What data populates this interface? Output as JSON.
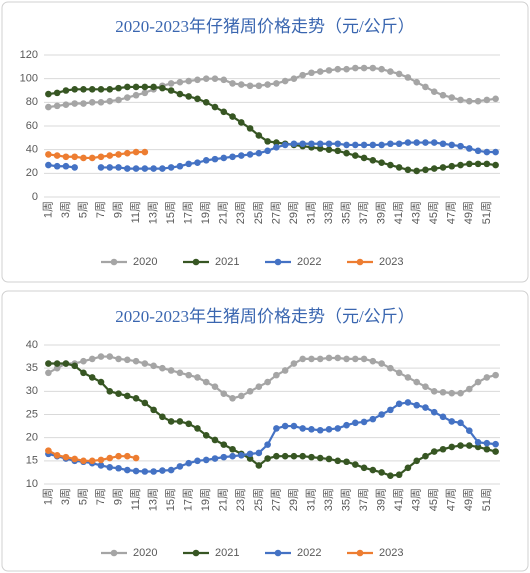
{
  "chart_data": [
    {
      "type": "line",
      "title": "2020-2023年仔猪周价格走势（元/公斤）",
      "categories": [
        "1周",
        null,
        "3周",
        null,
        "5周",
        null,
        "7周",
        null,
        "9周",
        null,
        "11周",
        null,
        "13周",
        null,
        "15周",
        null,
        "17周",
        null,
        "19周",
        null,
        "21周",
        null,
        "23周",
        null,
        "25周",
        null,
        "27周",
        null,
        "29周",
        null,
        "31周",
        null,
        "33周",
        null,
        "35周",
        null,
        "37周",
        null,
        "39周",
        null,
        "41周",
        null,
        "43周",
        null,
        "45周",
        null,
        "47周",
        null,
        "49周",
        null,
        "51周",
        null
      ],
      "ylim": [
        0,
        120
      ],
      "yticks": [
        0,
        20,
        40,
        60,
        80,
        100,
        120
      ],
      "grid": true,
      "legend": "bottom",
      "series": [
        {
          "name": "2020",
          "color": "#a5a5a5",
          "values": [
            76,
            77,
            78,
            79,
            79,
            80,
            80,
            81,
            82,
            84,
            86,
            88,
            91,
            94,
            96,
            97,
            98,
            99,
            100,
            100,
            99,
            96,
            95,
            94,
            94,
            95,
            96,
            98,
            100,
            103,
            105,
            106,
            107,
            108,
            108,
            109,
            109,
            109,
            108,
            106,
            104,
            101,
            97,
            93,
            89,
            86,
            84,
            82,
            81,
            81,
            82,
            83
          ]
        },
        {
          "name": "2021",
          "color": "#375623",
          "values": [
            87,
            88,
            90,
            91,
            91,
            91,
            91,
            91,
            92,
            93,
            93,
            93,
            93,
            92,
            90,
            87,
            85,
            83,
            80,
            76,
            72,
            68,
            63,
            58,
            52,
            47,
            46,
            45,
            44,
            43,
            42,
            41,
            40,
            39,
            37,
            35,
            33,
            31,
            29,
            27,
            25,
            23,
            22,
            23,
            24,
            25,
            26,
            27,
            28,
            28,
            28,
            27
          ]
        },
        {
          "name": "2022",
          "color": "#4472c4",
          "values": [
            27,
            26,
            26,
            25,
            null,
            null,
            25,
            25,
            25,
            24,
            24,
            24,
            24,
            24,
            25,
            26,
            28,
            29,
            31,
            32,
            33,
            34,
            35,
            36,
            37,
            39,
            42,
            44,
            45,
            45,
            45,
            45,
            45,
            45,
            44,
            44,
            44,
            44,
            44,
            45,
            45,
            46,
            46,
            46,
            46,
            45,
            44,
            43,
            41,
            39,
            38,
            38
          ]
        },
        {
          "name": "2023",
          "color": "#ed7d31",
          "values": [
            36,
            35,
            34,
            34,
            33,
            33,
            34,
            35,
            36,
            37,
            38,
            38,
            null,
            null,
            null,
            null,
            null,
            null,
            null,
            null,
            null,
            null,
            null,
            null,
            null,
            null,
            null,
            null,
            null,
            null,
            null,
            null,
            null,
            null,
            null,
            null,
            null,
            null,
            null,
            null,
            null,
            null,
            null,
            null,
            null,
            null,
            null,
            null,
            null,
            null,
            null,
            null
          ]
        }
      ]
    },
    {
      "type": "line",
      "title": "2020-2023年生猪周价格走势（元/公斤）",
      "categories": [
        "1周",
        null,
        "3周",
        null,
        "5周",
        null,
        "7周",
        null,
        "9周",
        null,
        "11周",
        null,
        "13周",
        null,
        "15周",
        null,
        "17周",
        null,
        "19周",
        null,
        "21周",
        null,
        "23周",
        null,
        "25周",
        null,
        "27周",
        null,
        "29周",
        null,
        "31周",
        null,
        "33周",
        null,
        "35周",
        null,
        "37周",
        null,
        "39周",
        null,
        "41周",
        null,
        "43周",
        null,
        "45周",
        null,
        "47周",
        null,
        "49周",
        null,
        "51周",
        null
      ],
      "ylim": [
        10,
        40
      ],
      "yticks": [
        10,
        15,
        20,
        25,
        30,
        35,
        40
      ],
      "grid": true,
      "legend": "bottom",
      "series": [
        {
          "name": "2020",
          "color": "#a5a5a5",
          "values": [
            34,
            35,
            36,
            36,
            36.5,
            37,
            37.5,
            37.5,
            37,
            36.8,
            36.5,
            36,
            35.5,
            35,
            34.5,
            34,
            33.5,
            33,
            32,
            31,
            29.5,
            28.5,
            29,
            30,
            31,
            32,
            33.5,
            34.5,
            36,
            37,
            37,
            37,
            37.2,
            37.2,
            37,
            37,
            37,
            36.5,
            36,
            35,
            34,
            33,
            32,
            31,
            30,
            29.8,
            29.6,
            29.6,
            30.5,
            32,
            33,
            33.5
          ]
        },
        {
          "name": "2021",
          "color": "#375623",
          "values": [
            36,
            36,
            36,
            35.5,
            34,
            33,
            32,
            30,
            29.5,
            29,
            28.5,
            27.5,
            26,
            24.5,
            23.5,
            23.5,
            23,
            22,
            20.5,
            19.5,
            18.5,
            17.5,
            16.5,
            15.5,
            14,
            15.5,
            16,
            16,
            16,
            16,
            15.8,
            15.6,
            15.4,
            15,
            14.8,
            14.2,
            13.5,
            13,
            12.5,
            11.8,
            12,
            13.5,
            15,
            16,
            17,
            17.5,
            18,
            18.3,
            18.3,
            18,
            17.5,
            17
          ]
        },
        {
          "name": "2022",
          "color": "#4472c4",
          "values": [
            16.5,
            16,
            15.5,
            15,
            14.8,
            14.5,
            14,
            13.6,
            13.4,
            13,
            12.8,
            12.7,
            12.7,
            12.9,
            13,
            13.8,
            14.5,
            15,
            15.2,
            15.5,
            15.8,
            16,
            16.2,
            16.5,
            16.7,
            18.5,
            22,
            22.5,
            22.5,
            22,
            21.8,
            21.6,
            21.8,
            22,
            22.7,
            23.2,
            23.4,
            24,
            25,
            26,
            27.3,
            27.6,
            27,
            26.5,
            25.5,
            24.5,
            23.5,
            23.2,
            21.5,
            19,
            18.8,
            18.6
          ]
        },
        {
          "name": "2023",
          "color": "#ed7d31",
          "values": [
            17.2,
            16.2,
            15.8,
            15.4,
            15,
            15,
            15.2,
            15.6,
            16,
            16,
            15.6,
            null,
            null,
            null,
            null,
            null,
            null,
            null,
            null,
            null,
            null,
            null,
            null,
            null,
            null,
            null,
            null,
            null,
            null,
            null,
            null,
            null,
            null,
            null,
            null,
            null,
            null,
            null,
            null,
            null,
            null,
            null,
            null,
            null,
            null,
            null,
            null,
            null,
            null,
            null,
            null,
            null
          ]
        }
      ]
    }
  ]
}
